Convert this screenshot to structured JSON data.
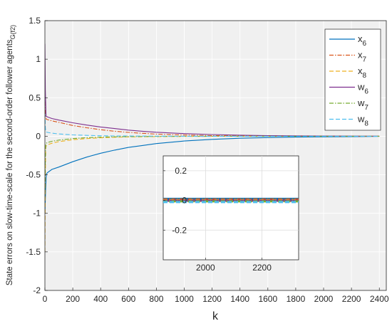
{
  "chart_data": [
    {
      "type": "line",
      "xlabel": "k",
      "ylabel": "State errors on slow-time-scale for the second-order follower agents",
      "ylabel_subscript": "G(f2)",
      "xlim": [
        0,
        2450
      ],
      "ylim": [
        -2,
        1.5
      ],
      "xticks": [
        0,
        200,
        400,
        600,
        800,
        1000,
        1200,
        1400,
        1600,
        1800,
        2000,
        2200,
        2400
      ],
      "yticks": [
        -2,
        -1.5,
        -1,
        -0.5,
        0,
        0.5,
        1,
        1.5
      ],
      "ytick_labels": [
        "-2",
        "-1.5",
        "-1",
        "-0.5",
        "0",
        "0.5",
        "1",
        "1.5"
      ],
      "grid": true,
      "legend_position": "top-right",
      "series": [
        {
          "name": "x",
          "subscript": "6",
          "color": "#0072BD",
          "dash": "solid",
          "x": [
            0,
            5,
            10,
            20,
            50,
            100,
            200,
            300,
            400,
            500,
            600,
            700,
            800,
            1000,
            1200,
            1400,
            1600,
            1800,
            2000,
            2200,
            2400
          ],
          "y": [
            -1.0,
            -0.7,
            -0.49,
            -0.47,
            -0.43,
            -0.4,
            -0.33,
            -0.27,
            -0.22,
            -0.18,
            -0.145,
            -0.12,
            -0.095,
            -0.062,
            -0.04,
            -0.026,
            -0.017,
            -0.011,
            -0.007,
            -0.004,
            -0.002
          ]
        },
        {
          "name": "x",
          "subscript": "7",
          "color": "#D95319",
          "dash": "dashdot",
          "x": [
            0,
            5,
            10,
            20,
            50,
            100,
            200,
            300,
            400,
            500,
            600,
            700,
            800,
            1000,
            1200,
            1400,
            1600,
            1800,
            2000,
            2200,
            2400
          ],
          "y": [
            0.45,
            0.25,
            0.22,
            0.215,
            0.2,
            0.18,
            0.14,
            0.11,
            0.085,
            0.065,
            0.05,
            0.038,
            0.028,
            0.016,
            0.009,
            0.005,
            0.003,
            0.002,
            0.001,
            0.0005,
            0.0002
          ]
        },
        {
          "name": "x",
          "subscript": "8",
          "color": "#EDB120",
          "dash": "dashed",
          "x": [
            0,
            3,
            6,
            10,
            20,
            50,
            100,
            200,
            300,
            400,
            500,
            600,
            800,
            1000,
            1200,
            1600,
            2000,
            2400
          ],
          "y": [
            -1.5,
            -0.5,
            -0.15,
            -0.12,
            -0.11,
            -0.09,
            -0.07,
            -0.045,
            -0.03,
            -0.02,
            -0.013,
            -0.008,
            -0.004,
            -0.002,
            -0.001,
            0,
            0,
            0
          ]
        },
        {
          "name": "w",
          "subscript": "6",
          "color": "#7E2F8E",
          "dash": "solid",
          "x": [
            0,
            3,
            8,
            20,
            50,
            100,
            200,
            300,
            400,
            500,
            600,
            700,
            800,
            1000,
            1200,
            1400,
            1600,
            1800,
            2000,
            2200,
            2400
          ],
          "y": [
            1.2,
            0.6,
            0.26,
            0.25,
            0.23,
            0.21,
            0.175,
            0.145,
            0.12,
            0.1,
            0.08,
            0.065,
            0.052,
            0.034,
            0.022,
            0.014,
            0.009,
            0.006,
            0.004,
            0.002,
            0.001
          ]
        },
        {
          "name": "w",
          "subscript": "7",
          "color": "#77AC30",
          "dash": "dashdot",
          "x": [
            0,
            3,
            6,
            10,
            20,
            50,
            100,
            200,
            300,
            400,
            500,
            600,
            800,
            1000,
            1200,
            1600,
            2000,
            2400
          ],
          "y": [
            -0.8,
            -0.3,
            -0.1,
            -0.09,
            -0.08,
            -0.065,
            -0.05,
            -0.03,
            -0.018,
            -0.011,
            -0.007,
            -0.004,
            -0.002,
            -0.001,
            0,
            0,
            0,
            0
          ]
        },
        {
          "name": "w",
          "subscript": "8",
          "color": "#4DBEEE",
          "dash": "dashed",
          "x": [
            0,
            3,
            6,
            10,
            20,
            50,
            100,
            200,
            300,
            400,
            500,
            600,
            800,
            1000,
            1200,
            1600,
            2000,
            2400
          ],
          "y": [
            0.3,
            0.12,
            0.06,
            0.055,
            0.05,
            0.04,
            0.03,
            0.018,
            0.011,
            0.007,
            0.004,
            0.003,
            0.001,
            0.0005,
            0,
            0,
            0,
            0
          ]
        }
      ]
    },
    {
      "type": "line",
      "role": "inset",
      "xlim": [
        1850,
        2330
      ],
      "ylim": [
        -0.4,
        0.3
      ],
      "xticks": [
        2000,
        2200
      ],
      "yticks": [
        -0.2,
        0,
        0.2
      ],
      "ytick_labels": [
        "-0.2",
        "0",
        "0.2"
      ],
      "grid": true
    }
  ]
}
